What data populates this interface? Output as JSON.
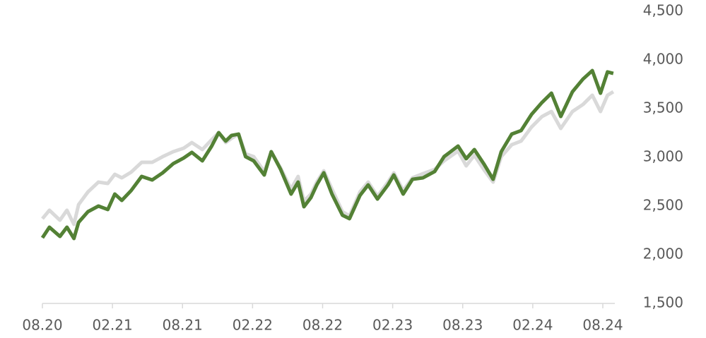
{
  "chart_data": {
    "type": "line",
    "x": [
      0,
      0.6,
      1.5,
      2.1,
      2.7,
      3.1,
      3.9,
      4.8,
      5.6,
      6.2,
      6.8,
      7.6,
      8.5,
      9.4,
      10.3,
      11.2,
      12.1,
      12.8,
      13.7,
      14.5,
      15.1,
      15.7,
      16.2,
      16.8,
      17.4,
      18.1,
      19.0,
      19.6,
      20.4,
      21.3,
      21.9,
      22.4,
      23.0,
      23.5,
      24.1,
      24.8,
      25.7,
      26.3,
      27.2,
      27.9,
      28.7,
      29.6,
      30.1,
      30.9,
      31.7,
      32.6,
      33.6,
      34.4,
      35.6,
      36.3,
      37.0,
      37.8,
      38.6,
      39.3,
      40.2,
      41.0,
      41.9,
      42.8,
      43.6,
      44.4,
      45.4,
      46.3,
      47.1,
      47.8,
      48.4,
      48.9
    ],
    "series": [
      {
        "color": "#d9d9d9",
        "values": [
          2370,
          2457,
          2355,
          2457,
          2312,
          2515,
          2645,
          2746,
          2732,
          2826,
          2790,
          2848,
          2949,
          2949,
          3007,
          3058,
          3094,
          3152,
          3080,
          3181,
          3254,
          3152,
          3196,
          3239,
          3036,
          3007,
          2855,
          3058,
          2891,
          2674,
          2804,
          2551,
          2623,
          2746,
          2862,
          2674,
          2442,
          2399,
          2645,
          2746,
          2601,
          2746,
          2841,
          2659,
          2790,
          2833,
          2877,
          2964,
          3065,
          2913,
          3022,
          2877,
          2746,
          3007,
          3130,
          3167,
          3312,
          3420,
          3471,
          3297,
          3471,
          3543,
          3638,
          3471,
          3638,
          3674
        ]
      },
      {
        "color": "#538135",
        "values": [
          2174,
          2283,
          2188,
          2283,
          2167,
          2333,
          2442,
          2500,
          2464,
          2623,
          2558,
          2659,
          2804,
          2768,
          2841,
          2935,
          2993,
          3051,
          2964,
          3116,
          3254,
          3167,
          3225,
          3239,
          3007,
          2964,
          2819,
          3058,
          2877,
          2623,
          2746,
          2493,
          2587,
          2717,
          2841,
          2623,
          2406,
          2370,
          2609,
          2717,
          2572,
          2717,
          2819,
          2623,
          2775,
          2790,
          2855,
          3007,
          3116,
          2986,
          3080,
          2935,
          2775,
          3058,
          3239,
          3275,
          3442,
          3565,
          3659,
          3420,
          3674,
          3804,
          3891,
          3659,
          3877,
          3862
        ]
      }
    ],
    "xlim": [
      0,
      48
    ],
    "xticks": [
      {
        "value": 0,
        "label": "08.20"
      },
      {
        "value": 6,
        "label": "02.21"
      },
      {
        "value": 12,
        "label": "08.21"
      },
      {
        "value": 18,
        "label": "02.22"
      },
      {
        "value": 24,
        "label": "08.22"
      },
      {
        "value": 30,
        "label": "02.23"
      },
      {
        "value": 36,
        "label": "08.23"
      },
      {
        "value": 42,
        "label": "02.24"
      },
      {
        "value": 48,
        "label": "08.24"
      }
    ],
    "ylim": [
      1500,
      4500
    ],
    "yticks": [
      {
        "value": 1500,
        "label": "1,500"
      },
      {
        "value": 2000,
        "label": "2,000"
      },
      {
        "value": 2500,
        "label": "2,500"
      },
      {
        "value": 3000,
        "label": "3,000"
      },
      {
        "value": 3500,
        "label": "3,500"
      },
      {
        "value": 4000,
        "label": "4,000"
      },
      {
        "value": 4500,
        "label": "4,500"
      }
    ]
  }
}
